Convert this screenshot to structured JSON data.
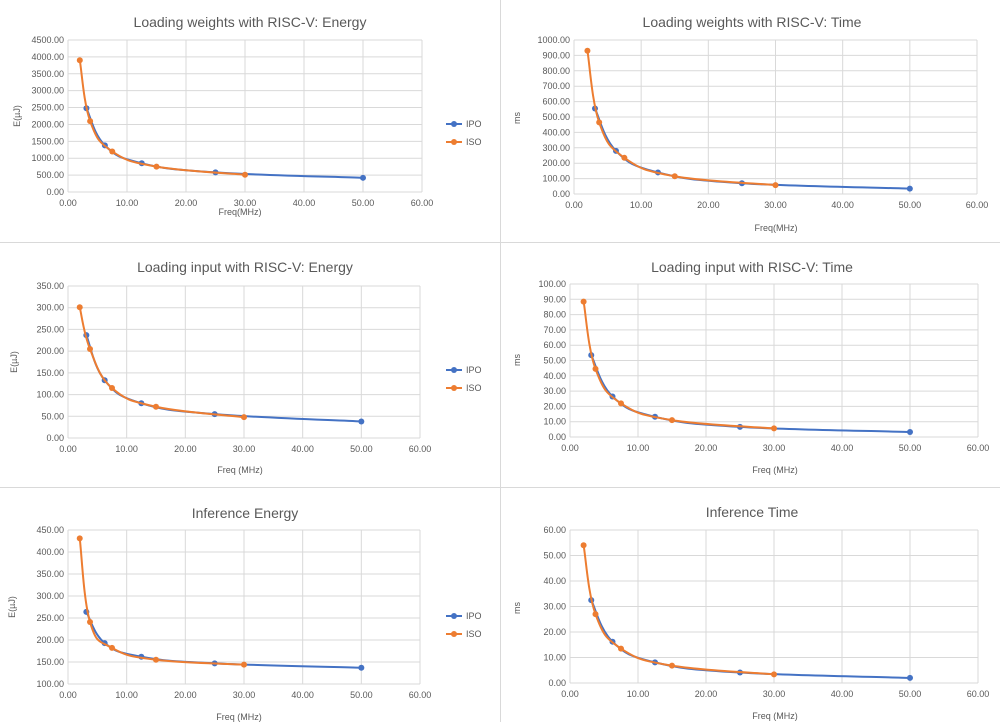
{
  "chart_data": [
    {
      "type": "line",
      "title": "Loading weights with RISC-V: Energy",
      "xlabel": "Freq(MHz)",
      "ylabel": "E(µJ)",
      "xlim": [
        0,
        60
      ],
      "ylim": [
        0,
        4500
      ],
      "xticks": [
        "0.00",
        "10.00",
        "20.00",
        "30.00",
        "40.00",
        "50.00",
        "60.00"
      ],
      "yticks": [
        "0.00",
        "500.00",
        "1000.00",
        "1500.00",
        "2000.00",
        "2500.00",
        "3000.00",
        "3500.00",
        "4000.00",
        "4500.00"
      ],
      "grid": true,
      "legend": "right",
      "series": [
        {
          "name": "IPO",
          "color": "#4472c4",
          "x": [
            3.125,
            6.25,
            12.5,
            25,
            50
          ],
          "y": [
            2480,
            1380,
            850,
            580,
            420
          ]
        },
        {
          "name": "ISO",
          "color": "#ed7d31",
          "x": [
            2,
            3.75,
            7.5,
            15,
            30
          ],
          "y": [
            3900,
            2100,
            1200,
            750,
            510
          ]
        }
      ]
    },
    {
      "type": "line",
      "title": "Loading weights with RISC-V: Time",
      "xlabel": "Freq(MHz)",
      "ylabel": "ms",
      "xlim": [
        0,
        60
      ],
      "ylim": [
        0,
        1000
      ],
      "xticks": [
        "0.00",
        "10.00",
        "20.00",
        "30.00",
        "40.00",
        "50.00",
        "60.00"
      ],
      "yticks": [
        "0.00",
        "100.00",
        "200.00",
        "300.00",
        "400.00",
        "500.00",
        "600.00",
        "700.00",
        "800.00",
        "900.00",
        "1000.00"
      ],
      "grid": true,
      "legend": "none",
      "series": [
        {
          "name": "IPO",
          "color": "#4472c4",
          "x": [
            3.125,
            6.25,
            12.5,
            25,
            50
          ],
          "y": [
            555,
            280,
            140,
            70,
            35
          ]
        },
        {
          "name": "ISO",
          "color": "#ed7d31",
          "x": [
            2,
            3.75,
            7.5,
            15,
            30
          ],
          "y": [
            930,
            465,
            235,
            115,
            58
          ]
        }
      ]
    },
    {
      "type": "line",
      "title": "Loading input with RISC-V: Energy",
      "xlabel": "Freq (MHz)",
      "ylabel": "E(µJ)",
      "xlim": [
        0,
        60
      ],
      "ylim": [
        0,
        350
      ],
      "xticks": [
        "0.00",
        "10.00",
        "20.00",
        "30.00",
        "40.00",
        "50.00",
        "60.00"
      ],
      "yticks": [
        "0.00",
        "50.00",
        "100.00",
        "150.00",
        "200.00",
        "250.00",
        "300.00",
        "350.00"
      ],
      "grid": true,
      "legend": "right",
      "series": [
        {
          "name": "IPO",
          "color": "#4472c4",
          "x": [
            3.125,
            6.25,
            12.5,
            25,
            50
          ],
          "y": [
            237,
            133,
            80,
            55,
            38
          ]
        },
        {
          "name": "ISO",
          "color": "#ed7d31",
          "x": [
            2,
            3.75,
            7.5,
            15,
            30
          ],
          "y": [
            301,
            205,
            115,
            72,
            48
          ]
        }
      ]
    },
    {
      "type": "line",
      "title": "Loading input with RISC-V: Time",
      "xlabel": "Freq (MHz)",
      "ylabel": "ms",
      "xlim": [
        0,
        60
      ],
      "ylim": [
        0,
        100
      ],
      "xticks": [
        "0.00",
        "10.00",
        "20.00",
        "30.00",
        "40.00",
        "50.00",
        "60.00"
      ],
      "yticks": [
        "0.00",
        "10.00",
        "20.00",
        "30.00",
        "40.00",
        "50.00",
        "60.00",
        "70.00",
        "80.00",
        "90.00",
        "100.00"
      ],
      "grid": true,
      "legend": "none",
      "series": [
        {
          "name": "IPO",
          "color": "#4472c4",
          "x": [
            3.125,
            6.25,
            12.5,
            25,
            50
          ],
          "y": [
            53.5,
            26.5,
            13.2,
            6.6,
            3.3
          ]
        },
        {
          "name": "ISO",
          "color": "#ed7d31",
          "x": [
            2,
            3.75,
            7.5,
            15,
            30
          ],
          "y": [
            88.5,
            44.5,
            22,
            11,
            5.6
          ]
        }
      ]
    },
    {
      "type": "line",
      "title": "Inference Energy",
      "xlabel": "Freq (MHz)",
      "ylabel": "E(µJ)",
      "xlim": [
        0,
        60
      ],
      "ylim": [
        100,
        450
      ],
      "xticks": [
        "0.00",
        "10.00",
        "20.00",
        "30.00",
        "40.00",
        "50.00",
        "60.00"
      ],
      "yticks": [
        "100.00",
        "150.00",
        "200.00",
        "250.00",
        "300.00",
        "350.00",
        "400.00",
        "450.00"
      ],
      "grid": true,
      "legend": "right",
      "series": [
        {
          "name": "IPO",
          "color": "#4472c4",
          "x": [
            3.125,
            6.25,
            12.5,
            25,
            50
          ],
          "y": [
            264,
            193,
            162,
            147,
            137
          ]
        },
        {
          "name": "ISO",
          "color": "#ed7d31",
          "x": [
            2,
            3.75,
            7.5,
            15,
            30
          ],
          "y": [
            431,
            241,
            182,
            155,
            144
          ]
        }
      ]
    },
    {
      "type": "line",
      "title": "Inference Time",
      "xlabel": "Freq (MHz)",
      "ylabel": "ms",
      "xlim": [
        0,
        60
      ],
      "ylim": [
        0,
        60
      ],
      "xticks": [
        "0.00",
        "10.00",
        "20.00",
        "30.00",
        "40.00",
        "50.00",
        "60.00"
      ],
      "yticks": [
        "0.00",
        "10.00",
        "20.00",
        "30.00",
        "40.00",
        "50.00",
        "60.00"
      ],
      "grid": true,
      "legend": "none",
      "series": [
        {
          "name": "IPO",
          "color": "#4472c4",
          "x": [
            3.125,
            6.25,
            12.5,
            25,
            50
          ],
          "y": [
            32.5,
            16.2,
            8.1,
            4.1,
            2
          ]
        },
        {
          "name": "ISO",
          "color": "#ed7d31",
          "x": [
            2,
            3.75,
            7.5,
            15,
            30
          ],
          "y": [
            54,
            27,
            13.5,
            6.8,
            3.4
          ]
        }
      ]
    }
  ]
}
